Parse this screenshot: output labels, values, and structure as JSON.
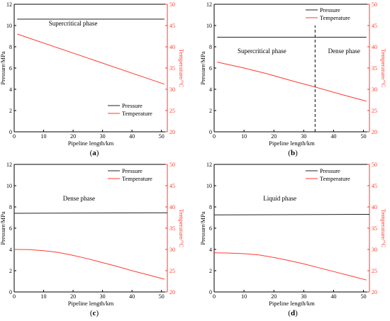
{
  "colors": {
    "pressure": "#222222",
    "temperature": "#ff3b30",
    "axis": "#000000"
  },
  "chart_data": [
    {
      "type": "line",
      "caption_pre": "(",
      "caption_letter": "a",
      "caption_post": ")",
      "xlabel": "Pipeline length/km",
      "ylabel": "Pressure/MPa",
      "y2label": "Temperature/°C",
      "xlim": [
        0,
        52
      ],
      "ylim": [
        0,
        12
      ],
      "y2lim": [
        20,
        50
      ],
      "xticks": [
        0,
        10,
        20,
        30,
        40,
        50
      ],
      "yticks": [
        0,
        2,
        4,
        6,
        8,
        10,
        12
      ],
      "y2ticks": [
        20,
        25,
        30,
        35,
        40,
        45,
        50
      ],
      "grid": false,
      "legend_position": "bottom-right",
      "series": [
        {
          "name": "Pressure",
          "axis": "left",
          "x": [
            1,
            51
          ],
          "y": [
            10.6,
            10.6
          ]
        },
        {
          "name": "Temperature",
          "axis": "right",
          "x": [
            1,
            51
          ],
          "y": [
            43.0,
            31.2
          ]
        }
      ],
      "annotations": [
        {
          "text": "Supercritical phase",
          "x": 20,
          "y": 45
        }
      ]
    },
    {
      "type": "line",
      "caption_pre": "(",
      "caption_letter": "b",
      "caption_post": ")",
      "xlabel": "Pipeline length/km",
      "ylabel": "Pressure/MPa",
      "y2label": "Temperature/°C",
      "xlim": [
        0,
        52
      ],
      "ylim": [
        0,
        12
      ],
      "y2lim": [
        20,
        50
      ],
      "xticks": [
        0,
        10,
        20,
        30,
        40,
        50
      ],
      "yticks": [
        0,
        2,
        4,
        6,
        8,
        10,
        12
      ],
      "y2ticks": [
        20,
        25,
        30,
        35,
        40,
        45,
        50
      ],
      "grid": false,
      "legend_position": "top-right",
      "series": [
        {
          "name": "Pressure",
          "axis": "left",
          "x": [
            1,
            51
          ],
          "y": [
            8.9,
            8.9
          ]
        },
        {
          "name": "Temperature",
          "axis": "right",
          "x": [
            1,
            10,
            18,
            26,
            34,
            42,
            51
          ],
          "y": [
            36.4,
            35.0,
            33.6,
            32.0,
            30.5,
            28.9,
            27.2
          ]
        }
      ],
      "vline": {
        "x": 33.8,
        "y": [
          0,
          10
        ]
      },
      "annotations": [
        {
          "text": "Supercritical phase",
          "x": 16,
          "y": 38.5
        },
        {
          "text": "Dense phase",
          "x": 43.5,
          "y": 38.5
        }
      ]
    },
    {
      "type": "line",
      "caption_pre": "(",
      "caption_letter": "c",
      "caption_post": ")",
      "xlabel": "Pipeline length/km",
      "ylabel": "Pressure/MPa",
      "y2label": "Temperature/°C",
      "xlim": [
        0,
        52
      ],
      "ylim": [
        0,
        12
      ],
      "y2lim": [
        20,
        50
      ],
      "xticks": [
        0,
        10,
        20,
        30,
        40,
        50
      ],
      "yticks": [
        0,
        2,
        4,
        6,
        8,
        10,
        12
      ],
      "y2ticks": [
        20,
        25,
        30,
        35,
        40,
        45,
        50
      ],
      "grid": false,
      "legend_position": "top-right",
      "series": [
        {
          "name": "Pressure",
          "axis": "left",
          "x": [
            0,
            52
          ],
          "y": [
            7.4,
            7.45
          ]
        },
        {
          "name": "Temperature",
          "axis": "right",
          "x": [
            0,
            5,
            10,
            15,
            20,
            25,
            30,
            35,
            40,
            45,
            51
          ],
          "y": [
            30.0,
            29.95,
            29.7,
            29.3,
            28.6,
            27.8,
            26.9,
            26.0,
            25.0,
            24.1,
            23.0
          ]
        }
      ],
      "annotations": [
        {
          "text": "Dense phase",
          "x": 22,
          "y": 41.5
        }
      ]
    },
    {
      "type": "line",
      "caption_pre": "(",
      "caption_letter": "d",
      "caption_post": ")",
      "xlabel": "Pipeline length/km",
      "ylabel": "Pressure/MPa",
      "y2label": "Temperature/°C",
      "xlim": [
        0,
        52
      ],
      "ylim": [
        0,
        12
      ],
      "y2lim": [
        20,
        50
      ],
      "xticks": [
        0,
        10,
        20,
        30,
        40,
        50
      ],
      "yticks": [
        0,
        2,
        4,
        6,
        8,
        10,
        12
      ],
      "y2ticks": [
        20,
        25,
        30,
        35,
        40,
        45,
        50
      ],
      "grid": false,
      "legend_position": "top-right",
      "series": [
        {
          "name": "Pressure",
          "axis": "left",
          "x": [
            0,
            52
          ],
          "y": [
            7.25,
            7.3
          ]
        },
        {
          "name": "Temperature",
          "axis": "right",
          "x": [
            0,
            5,
            10,
            15,
            20,
            25,
            30,
            35,
            40,
            45,
            51
          ],
          "y": [
            29.2,
            29.15,
            29.0,
            28.7,
            28.1,
            27.4,
            26.6,
            25.7,
            24.8,
            23.9,
            22.8
          ]
        }
      ],
      "annotations": [
        {
          "text": "Liquid phase",
          "x": 22,
          "y": 41.5
        }
      ]
    }
  ]
}
